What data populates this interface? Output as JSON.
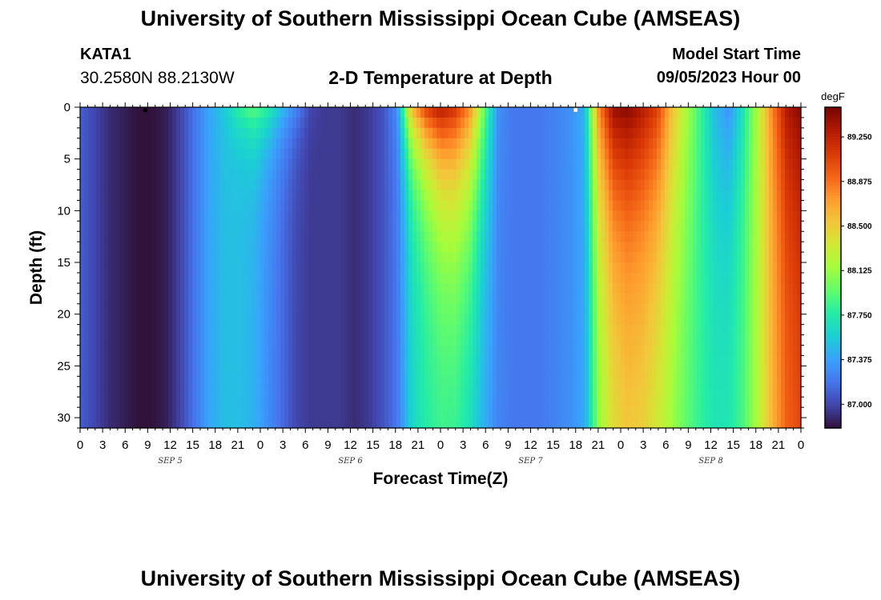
{
  "header": {
    "title": "University of Southern Mississippi Ocean Cube (AMSEAS)",
    "station": "KATA1",
    "coords": "30.2580N  88.2130W",
    "chart_title": "2-D Temperature at Depth",
    "model_start_label": "Model Start Time",
    "model_start_value": "09/05/2023 Hour 00"
  },
  "footer": {
    "title": "University of Southern Mississippi Ocean Cube (AMSEAS)"
  },
  "chart_data": {
    "type": "heatmap",
    "xlabel": "Forecast Time(Z)",
    "ylabel": "Depth (ft)",
    "colorbar_unit": "degF",
    "x_hours_range": [
      0,
      96
    ],
    "y_range": [
      0,
      31
    ],
    "y_ticks": [
      0,
      5,
      10,
      15,
      20,
      25,
      30
    ],
    "x_tick_labels": [
      "0",
      "3",
      "6",
      "9",
      "12",
      "15",
      "18",
      "21",
      "0",
      "3",
      "6",
      "9",
      "12",
      "15",
      "18",
      "21",
      "0",
      "3",
      "6",
      "9",
      "12",
      "15",
      "18",
      "21",
      "0",
      "3",
      "6",
      "9",
      "12",
      "15",
      "18",
      "21",
      "0"
    ],
    "day_labels": [
      {
        "label": "SEP 5",
        "hour": 12
      },
      {
        "label": "SEP 6",
        "hour": 36
      },
      {
        "label": "SEP 7",
        "hour": 60
      },
      {
        "label": "SEP 8",
        "hour": 84
      }
    ],
    "colorbar_ticks": [
      "89.250",
      "88.875",
      "88.500",
      "88.125",
      "87.750",
      "87.375",
      "87.000"
    ],
    "colorbar_range": [
      86.8,
      89.5
    ],
    "colormap": [
      "#30123b",
      "#4145ab",
      "#4675ed",
      "#39a2fc",
      "#1bcfd4",
      "#24eca6",
      "#61fc6c",
      "#a4fc3b",
      "#d1e834",
      "#f3c63a",
      "#fe9b2d",
      "#f36315",
      "#d93806",
      "#b11901",
      "#7a0402"
    ],
    "surface_temps": [
      87.1,
      87.0,
      86.9,
      86.85,
      86.8,
      86.8,
      86.85,
      87.0,
      87.2,
      87.4,
      87.55,
      87.8,
      87.95,
      87.8,
      87.5,
      87.25,
      87.0,
      86.95,
      86.95,
      86.9,
      86.95,
      87.05,
      87.3,
      88.6,
      89.1,
      89.3,
      89.15,
      88.8,
      88.0,
      87.3,
      87.2,
      87.2,
      87.2,
      87.25,
      87.3,
      87.45,
      88.8,
      89.4,
      89.45,
      89.3,
      89.1,
      88.6,
      88.2,
      87.85,
      87.5,
      87.3,
      87.7,
      88.2,
      88.8,
      89.3,
      89.45
    ],
    "deep_temps": [
      87.1,
      87.0,
      86.9,
      86.85,
      86.8,
      86.8,
      86.85,
      87.0,
      87.2,
      87.4,
      87.5,
      87.5,
      87.45,
      87.3,
      87.15,
      87.0,
      86.95,
      86.95,
      86.95,
      86.9,
      86.95,
      87.05,
      87.2,
      87.6,
      87.75,
      87.8,
      87.75,
      87.6,
      87.4,
      87.25,
      87.2,
      87.2,
      87.2,
      87.25,
      87.3,
      87.4,
      88.05,
      88.3,
      88.4,
      88.35,
      88.2,
      88.05,
      87.9,
      87.8,
      87.75,
      87.75,
      87.9,
      88.2,
      88.6,
      88.9,
      89.0
    ],
    "mixing_depth_ft": [
      2,
      2,
      2,
      2,
      2,
      2,
      2,
      2,
      2,
      2,
      3,
      3,
      4,
      4,
      4,
      4,
      3,
      3,
      3,
      3,
      3,
      4,
      5,
      6,
      7,
      9,
      11,
      12,
      12,
      11,
      10,
      9,
      9,
      9,
      10,
      12,
      13,
      14,
      15,
      16,
      17,
      18,
      18,
      18,
      16,
      12,
      11,
      11,
      12,
      13,
      14
    ],
    "markers": [
      {
        "hour": 8.7,
        "color": "#000000"
      },
      {
        "hour": 66,
        "color": "#ffffff"
      }
    ]
  }
}
